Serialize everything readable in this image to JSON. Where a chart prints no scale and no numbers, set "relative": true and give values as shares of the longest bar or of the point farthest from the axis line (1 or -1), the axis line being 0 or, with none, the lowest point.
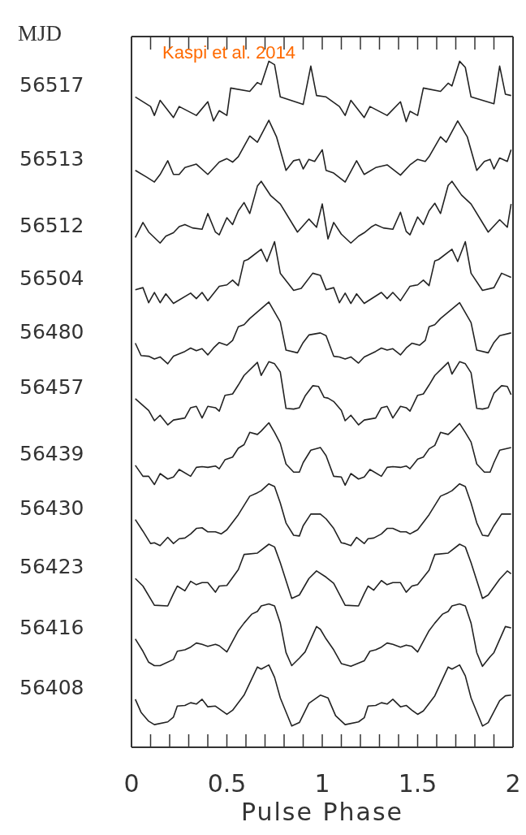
{
  "chart_data": {
    "type": "line",
    "relative": true,
    "xlabel": "Pulse Phase",
    "legend_title": "MJD",
    "annotations": [
      "Kaspi et al. 2014"
    ],
    "xlim": [
      0,
      2
    ],
    "xticks": [
      0,
      {
        "value": 0.1,
        "label": null
      },
      {
        "value": 0.2,
        "label": null
      },
      {
        "value": 0.3,
        "label": null
      },
      {
        "value": 0.4,
        "label": null
      },
      0.5,
      {
        "value": 0.6,
        "label": null
      },
      {
        "value": 0.7,
        "label": null
      },
      {
        "value": 0.8,
        "label": null
      },
      {
        "value": 0.9,
        "label": null
      },
      1,
      {
        "value": 1.1,
        "label": null
      },
      {
        "value": 1.2,
        "label": null
      },
      {
        "value": 1.3,
        "label": null
      },
      {
        "value": 1.4,
        "label": null
      },
      1.5,
      {
        "value": 1.6,
        "label": null
      },
      {
        "value": 1.7,
        "label": null
      },
      {
        "value": 1.8,
        "label": null
      },
      {
        "value": 1.9,
        "label": null
      },
      2
    ],
    "series": [
      {
        "name": "56517",
        "color": "#222222",
        "x": [
          0.02,
          0.1,
          0.12,
          0.15,
          0.22,
          0.25,
          0.34,
          0.4,
          0.43,
          0.46,
          0.5,
          0.52,
          0.62,
          0.66,
          0.68,
          0.72,
          0.75,
          0.78,
          0.9,
          0.94,
          0.97,
          1.02,
          1.09,
          1.12,
          1.15,
          1.22,
          1.25,
          1.34,
          1.41,
          1.44,
          1.46,
          1.5,
          1.53,
          1.62,
          1.66,
          1.68,
          1.72,
          1.75,
          1.78,
          1.9,
          1.93,
          1.96,
          1.99
        ],
        "values": [
          0.948,
          0.934,
          0.921,
          0.943,
          0.918,
          0.934,
          0.921,
          0.941,
          0.913,
          0.928,
          0.921,
          0.961,
          0.956,
          0.969,
          0.966,
          1,
          0.995,
          0.948,
          0.937,
          0.993,
          0.95,
          0.948,
          0.934,
          0.921,
          0.943,
          0.918,
          0.934,
          0.921,
          0.941,
          0.912,
          0.927,
          0.921,
          0.961,
          0.956,
          0.968,
          0.964,
          1,
          0.991,
          0.948,
          0.938,
          0.993,
          0.952,
          0.95
        ]
      },
      {
        "name": "56513",
        "color": "#222222",
        "x": [
          0.02,
          0.08,
          0.12,
          0.15,
          0.19,
          0.22,
          0.25,
          0.28,
          0.34,
          0.4,
          0.46,
          0.5,
          0.53,
          0.56,
          0.62,
          0.66,
          0.72,
          0.76,
          0.81,
          0.85,
          0.88,
          0.9,
          0.93,
          0.96,
          1.0,
          1.02,
          1.06,
          1.12,
          1.18,
          1.22,
          1.28,
          1.34,
          1.41,
          1.46,
          1.5,
          1.54,
          1.56,
          1.62,
          1.65,
          1.71,
          1.76,
          1.81,
          1.85,
          1.88,
          1.9,
          1.93,
          1.97,
          1.99
        ],
        "values": [
          0.841,
          0.831,
          0.824,
          0.835,
          0.855,
          0.835,
          0.835,
          0.845,
          0.85,
          0.835,
          0.853,
          0.858,
          0.853,
          0.861,
          0.891,
          0.882,
          0.914,
          0.89,
          0.841,
          0.855,
          0.857,
          0.843,
          0.857,
          0.854,
          0.871,
          0.841,
          0.837,
          0.824,
          0.855,
          0.835,
          0.845,
          0.849,
          0.834,
          0.849,
          0.857,
          0.854,
          0.861,
          0.89,
          0.882,
          0.913,
          0.89,
          0.841,
          0.854,
          0.857,
          0.843,
          0.859,
          0.854,
          0.871
        ]
      },
      {
        "name": "56512",
        "color": "#222222",
        "x": [
          0.02,
          0.06,
          0.09,
          0.15,
          0.18,
          0.22,
          0.25,
          0.28,
          0.32,
          0.37,
          0.4,
          0.44,
          0.46,
          0.5,
          0.53,
          0.56,
          0.59,
          0.62,
          0.66,
          0.68,
          0.73,
          0.78,
          0.87,
          0.93,
          0.97,
          1.0,
          1.03,
          1.06,
          1.1,
          1.15,
          1.19,
          1.22,
          1.26,
          1.28,
          1.32,
          1.37,
          1.41,
          1.44,
          1.46,
          1.5,
          1.53,
          1.56,
          1.59,
          1.62,
          1.66,
          1.68,
          1.73,
          1.78,
          1.87,
          1.93,
          1.97,
          1.99
        ],
        "values": [
          0.743,
          0.765,
          0.751,
          0.735,
          0.745,
          0.75,
          0.759,
          0.762,
          0.757,
          0.755,
          0.778,
          0.751,
          0.747,
          0.772,
          0.762,
          0.782,
          0.794,
          0.778,
          0.818,
          0.825,
          0.804,
          0.792,
          0.751,
          0.77,
          0.758,
          0.792,
          0.741,
          0.765,
          0.748,
          0.735,
          0.745,
          0.75,
          0.759,
          0.762,
          0.757,
          0.755,
          0.78,
          0.752,
          0.747,
          0.773,
          0.762,
          0.782,
          0.793,
          0.778,
          0.819,
          0.825,
          0.805,
          0.792,
          0.751,
          0.769,
          0.758,
          0.792
        ]
      },
      {
        "name": "56504",
        "color": "#222222",
        "x": [
          0.02,
          0.06,
          0.09,
          0.12,
          0.15,
          0.18,
          0.22,
          0.31,
          0.34,
          0.37,
          0.4,
          0.46,
          0.5,
          0.53,
          0.56,
          0.59,
          0.61,
          0.68,
          0.71,
          0.75,
          0.78,
          0.85,
          0.89,
          0.95,
          0.99,
          1.02,
          1.06,
          1.09,
          1.12,
          1.15,
          1.18,
          1.22,
          1.31,
          1.34,
          1.37,
          1.41,
          1.46,
          1.5,
          1.53,
          1.56,
          1.59,
          1.61,
          1.68,
          1.71,
          1.75,
          1.78,
          1.84,
          1.9,
          1.94,
          1.99
        ],
        "values": [
          0.667,
          0.67,
          0.648,
          0.663,
          0.648,
          0.661,
          0.647,
          0.662,
          0.654,
          0.663,
          0.651,
          0.672,
          0.674,
          0.681,
          0.673,
          0.709,
          0.711,
          0.726,
          0.708,
          0.737,
          0.691,
          0.666,
          0.669,
          0.691,
          0.688,
          0.667,
          0.67,
          0.648,
          0.662,
          0.647,
          0.661,
          0.647,
          0.663,
          0.654,
          0.663,
          0.651,
          0.672,
          0.674,
          0.681,
          0.673,
          0.709,
          0.711,
          0.726,
          0.708,
          0.737,
          0.691,
          0.666,
          0.67,
          0.691,
          0.685
        ]
      },
      {
        "name": "56480",
        "color": "#222222",
        "x": [
          0.02,
          0.05,
          0.09,
          0.12,
          0.15,
          0.19,
          0.22,
          0.28,
          0.31,
          0.34,
          0.37,
          0.4,
          0.43,
          0.46,
          0.5,
          0.53,
          0.56,
          0.59,
          0.62,
          0.72,
          0.78,
          0.81,
          0.87,
          0.9,
          0.93,
          0.99,
          1.02,
          1.06,
          1.09,
          1.12,
          1.15,
          1.19,
          1.22,
          1.28,
          1.31,
          1.34,
          1.37,
          1.41,
          1.44,
          1.47,
          1.51,
          1.54,
          1.56,
          1.59,
          1.62,
          1.72,
          1.78,
          1.81,
          1.87,
          1.9,
          1.93,
          1.99
        ],
        "values": [
          0.589,
          0.571,
          0.57,
          0.566,
          0.569,
          0.559,
          0.57,
          0.577,
          0.582,
          0.578,
          0.581,
          0.572,
          0.582,
          0.59,
          0.586,
          0.593,
          0.613,
          0.616,
          0.625,
          0.649,
          0.62,
          0.579,
          0.575,
          0.59,
          0.601,
          0.604,
          0.6,
          0.57,
          0.569,
          0.566,
          0.569,
          0.56,
          0.569,
          0.577,
          0.582,
          0.579,
          0.581,
          0.572,
          0.582,
          0.589,
          0.586,
          0.593,
          0.613,
          0.616,
          0.625,
          0.648,
          0.619,
          0.579,
          0.575,
          0.59,
          0.6,
          0.604
        ]
      },
      {
        "name": "56457",
        "color": "#222222",
        "x": [
          0.02,
          0.09,
          0.12,
          0.15,
          0.19,
          0.22,
          0.28,
          0.31,
          0.34,
          0.37,
          0.4,
          0.44,
          0.46,
          0.49,
          0.53,
          0.56,
          0.59,
          0.66,
          0.68,
          0.72,
          0.75,
          0.78,
          0.81,
          0.85,
          0.88,
          0.91,
          0.95,
          0.98,
          1.01,
          1.03,
          1.06,
          1.1,
          1.12,
          1.15,
          1.19,
          1.22,
          1.28,
          1.31,
          1.34,
          1.37,
          1.41,
          1.44,
          1.46,
          1.5,
          1.53,
          1.56,
          1.59,
          1.66,
          1.68,
          1.72,
          1.75,
          1.78,
          1.81,
          1.84,
          1.87,
          1.9,
          1.94,
          1.97,
          1.99
        ],
        "values": [
          0.508,
          0.491,
          0.476,
          0.484,
          0.47,
          0.477,
          0.48,
          0.495,
          0.497,
          0.48,
          0.497,
          0.495,
          0.49,
          0.513,
          0.515,
          0.528,
          0.542,
          0.561,
          0.542,
          0.562,
          0.559,
          0.547,
          0.494,
          0.493,
          0.495,
          0.512,
          0.527,
          0.526,
          0.51,
          0.509,
          0.504,
          0.491,
          0.476,
          0.484,
          0.47,
          0.477,
          0.48,
          0.495,
          0.497,
          0.48,
          0.497,
          0.495,
          0.49,
          0.513,
          0.515,
          0.528,
          0.542,
          0.561,
          0.544,
          0.562,
          0.559,
          0.546,
          0.494,
          0.493,
          0.495,
          0.516,
          0.527,
          0.526,
          0.514
        ]
      },
      {
        "name": "56439",
        "color": "#222222",
        "x": [
          0.02,
          0.06,
          0.09,
          0.12,
          0.15,
          0.19,
          0.22,
          0.25,
          0.31,
          0.34,
          0.37,
          0.4,
          0.44,
          0.46,
          0.49,
          0.53,
          0.56,
          0.59,
          0.62,
          0.66,
          0.68,
          0.72,
          0.75,
          0.78,
          0.81,
          0.85,
          0.88,
          0.9,
          0.94,
          0.99,
          1.02,
          1.06,
          1.1,
          1.12,
          1.15,
          1.19,
          1.22,
          1.25,
          1.31,
          1.34,
          1.37,
          1.41,
          1.44,
          1.46,
          1.5,
          1.53,
          1.56,
          1.59,
          1.62,
          1.66,
          1.68,
          1.72,
          1.75,
          1.78,
          1.81,
          1.85,
          1.88,
          1.9,
          1.93,
          1.99
        ],
        "values": [
          0.411,
          0.395,
          0.395,
          0.383,
          0.399,
          0.391,
          0.394,
          0.405,
          0.395,
          0.408,
          0.409,
          0.408,
          0.41,
          0.406,
          0.419,
          0.423,
          0.436,
          0.441,
          0.459,
          0.456,
          0.461,
          0.473,
          0.459,
          0.443,
          0.413,
          0.401,
          0.401,
          0.415,
          0.433,
          0.437,
          0.425,
          0.395,
          0.394,
          0.382,
          0.399,
          0.391,
          0.394,
          0.405,
          0.395,
          0.408,
          0.409,
          0.408,
          0.41,
          0.406,
          0.42,
          0.423,
          0.435,
          0.44,
          0.459,
          0.456,
          0.461,
          0.472,
          0.459,
          0.445,
          0.413,
          0.401,
          0.401,
          0.415,
          0.433,
          0.437
        ]
      },
      {
        "name": "56430",
        "color": "#222222",
        "x": [
          0.02,
          0.06,
          0.1,
          0.12,
          0.15,
          0.19,
          0.22,
          0.25,
          0.28,
          0.31,
          0.34,
          0.37,
          0.4,
          0.44,
          0.47,
          0.5,
          0.56,
          0.62,
          0.66,
          0.68,
          0.72,
          0.75,
          0.78,
          0.81,
          0.85,
          0.88,
          0.9,
          0.94,
          0.99,
          1.02,
          1.06,
          1.1,
          1.12,
          1.15,
          1.18,
          1.22,
          1.24,
          1.27,
          1.31,
          1.34,
          1.37,
          1.41,
          1.44,
          1.46,
          1.5,
          1.56,
          1.62,
          1.66,
          1.68,
          1.72,
          1.75,
          1.78,
          1.81,
          1.84,
          1.87,
          1.9,
          1.94,
          1.99
        ],
        "values": [
          0.332,
          0.315,
          0.297,
          0.298,
          0.294,
          0.306,
          0.297,
          0.304,
          0.305,
          0.311,
          0.319,
          0.32,
          0.314,
          0.314,
          0.311,
          0.317,
          0.339,
          0.366,
          0.371,
          0.374,
          0.384,
          0.38,
          0.356,
          0.327,
          0.309,
          0.308,
          0.323,
          0.34,
          0.34,
          0.333,
          0.319,
          0.298,
          0.297,
          0.294,
          0.306,
          0.297,
          0.304,
          0.305,
          0.311,
          0.319,
          0.319,
          0.314,
          0.314,
          0.311,
          0.317,
          0.339,
          0.366,
          0.371,
          0.374,
          0.384,
          0.38,
          0.356,
          0.327,
          0.309,
          0.308,
          0.323,
          0.34,
          0.34
        ]
      },
      {
        "name": "56423",
        "color": "#222222",
        "x": [
          0.02,
          0.06,
          0.12,
          0.19,
          0.22,
          0.24,
          0.28,
          0.31,
          0.34,
          0.37,
          0.4,
          0.44,
          0.46,
          0.5,
          0.56,
          0.59,
          0.66,
          0.72,
          0.75,
          0.78,
          0.84,
          0.88,
          0.93,
          0.97,
          1.02,
          1.06,
          1.12,
          1.19,
          1.22,
          1.24,
          1.27,
          1.31,
          1.34,
          1.37,
          1.41,
          1.44,
          1.47,
          1.5,
          1.56,
          1.59,
          1.66,
          1.72,
          1.75,
          1.78,
          1.84,
          1.87,
          1.93,
          1.97,
          1.99
        ],
        "values": [
          0.246,
          0.235,
          0.207,
          0.206,
          0.224,
          0.235,
          0.228,
          0.242,
          0.237,
          0.24,
          0.24,
          0.226,
          0.235,
          0.236,
          0.259,
          0.281,
          0.283,
          0.296,
          0.292,
          0.269,
          0.217,
          0.222,
          0.246,
          0.257,
          0.248,
          0.239,
          0.207,
          0.206,
          0.224,
          0.235,
          0.229,
          0.243,
          0.237,
          0.24,
          0.24,
          0.226,
          0.235,
          0.237,
          0.258,
          0.281,
          0.283,
          0.296,
          0.292,
          0.269,
          0.217,
          0.222,
          0.245,
          0.257,
          0.253
        ]
      },
      {
        "name": "56416",
        "color": "#222222",
        "x": [
          0.02,
          0.06,
          0.09,
          0.12,
          0.15,
          0.22,
          0.24,
          0.28,
          0.31,
          0.34,
          0.37,
          0.4,
          0.44,
          0.46,
          0.5,
          0.56,
          0.59,
          0.63,
          0.66,
          0.68,
          0.72,
          0.75,
          0.78,
          0.81,
          0.84,
          0.88,
          0.91,
          0.97,
          0.99,
          1.02,
          1.06,
          1.1,
          1.15,
          1.22,
          1.25,
          1.28,
          1.31,
          1.34,
          1.37,
          1.41,
          1.44,
          1.47,
          1.5,
          1.56,
          1.59,
          1.63,
          1.66,
          1.68,
          1.72,
          1.75,
          1.78,
          1.81,
          1.84,
          1.88,
          1.9,
          1.96,
          1.99
        ],
        "values": [
          0.158,
          0.14,
          0.124,
          0.119,
          0.119,
          0.128,
          0.14,
          0.142,
          0.146,
          0.152,
          0.15,
          0.147,
          0.15,
          0.148,
          0.139,
          0.17,
          0.181,
          0.194,
          0.198,
          0.206,
          0.209,
          0.206,
          0.181,
          0.138,
          0.119,
          0.13,
          0.139,
          0.176,
          0.172,
          0.158,
          0.142,
          0.122,
          0.118,
          0.126,
          0.14,
          0.142,
          0.146,
          0.152,
          0.15,
          0.146,
          0.149,
          0.147,
          0.139,
          0.17,
          0.181,
          0.194,
          0.198,
          0.206,
          0.209,
          0.206,
          0.181,
          0.138,
          0.118,
          0.132,
          0.138,
          0.176,
          0.174
        ]
      },
      {
        "name": "56408",
        "color": "#222222",
        "x": [
          0.02,
          0.05,
          0.09,
          0.12,
          0.19,
          0.22,
          0.24,
          0.28,
          0.31,
          0.34,
          0.37,
          0.4,
          0.44,
          0.47,
          0.5,
          0.53,
          0.59,
          0.66,
          0.68,
          0.72,
          0.75,
          0.78,
          0.84,
          0.88,
          0.93,
          0.99,
          1.03,
          1.07,
          1.12,
          1.19,
          1.22,
          1.24,
          1.28,
          1.31,
          1.34,
          1.37,
          1.41,
          1.44,
          1.47,
          1.5,
          1.53,
          1.59,
          1.66,
          1.68,
          1.72,
          1.75,
          1.78,
          1.84,
          1.87,
          1.93,
          1.96,
          1.99
        ],
        "values": [
          0.07,
          0.051,
          0.038,
          0.033,
          0.037,
          0.044,
          0.06,
          0.061,
          0.065,
          0.063,
          0.07,
          0.059,
          0.06,
          0.054,
          0.048,
          0.054,
          0.076,
          0.117,
          0.114,
          0.12,
          0.102,
          0.072,
          0.031,
          0.036,
          0.064,
          0.076,
          0.072,
          0.046,
          0.033,
          0.037,
          0.043,
          0.06,
          0.061,
          0.065,
          0.063,
          0.07,
          0.059,
          0.061,
          0.054,
          0.048,
          0.053,
          0.075,
          0.117,
          0.114,
          0.12,
          0.104,
          0.072,
          0.031,
          0.036,
          0.068,
          0.075,
          0.076
        ]
      }
    ]
  }
}
